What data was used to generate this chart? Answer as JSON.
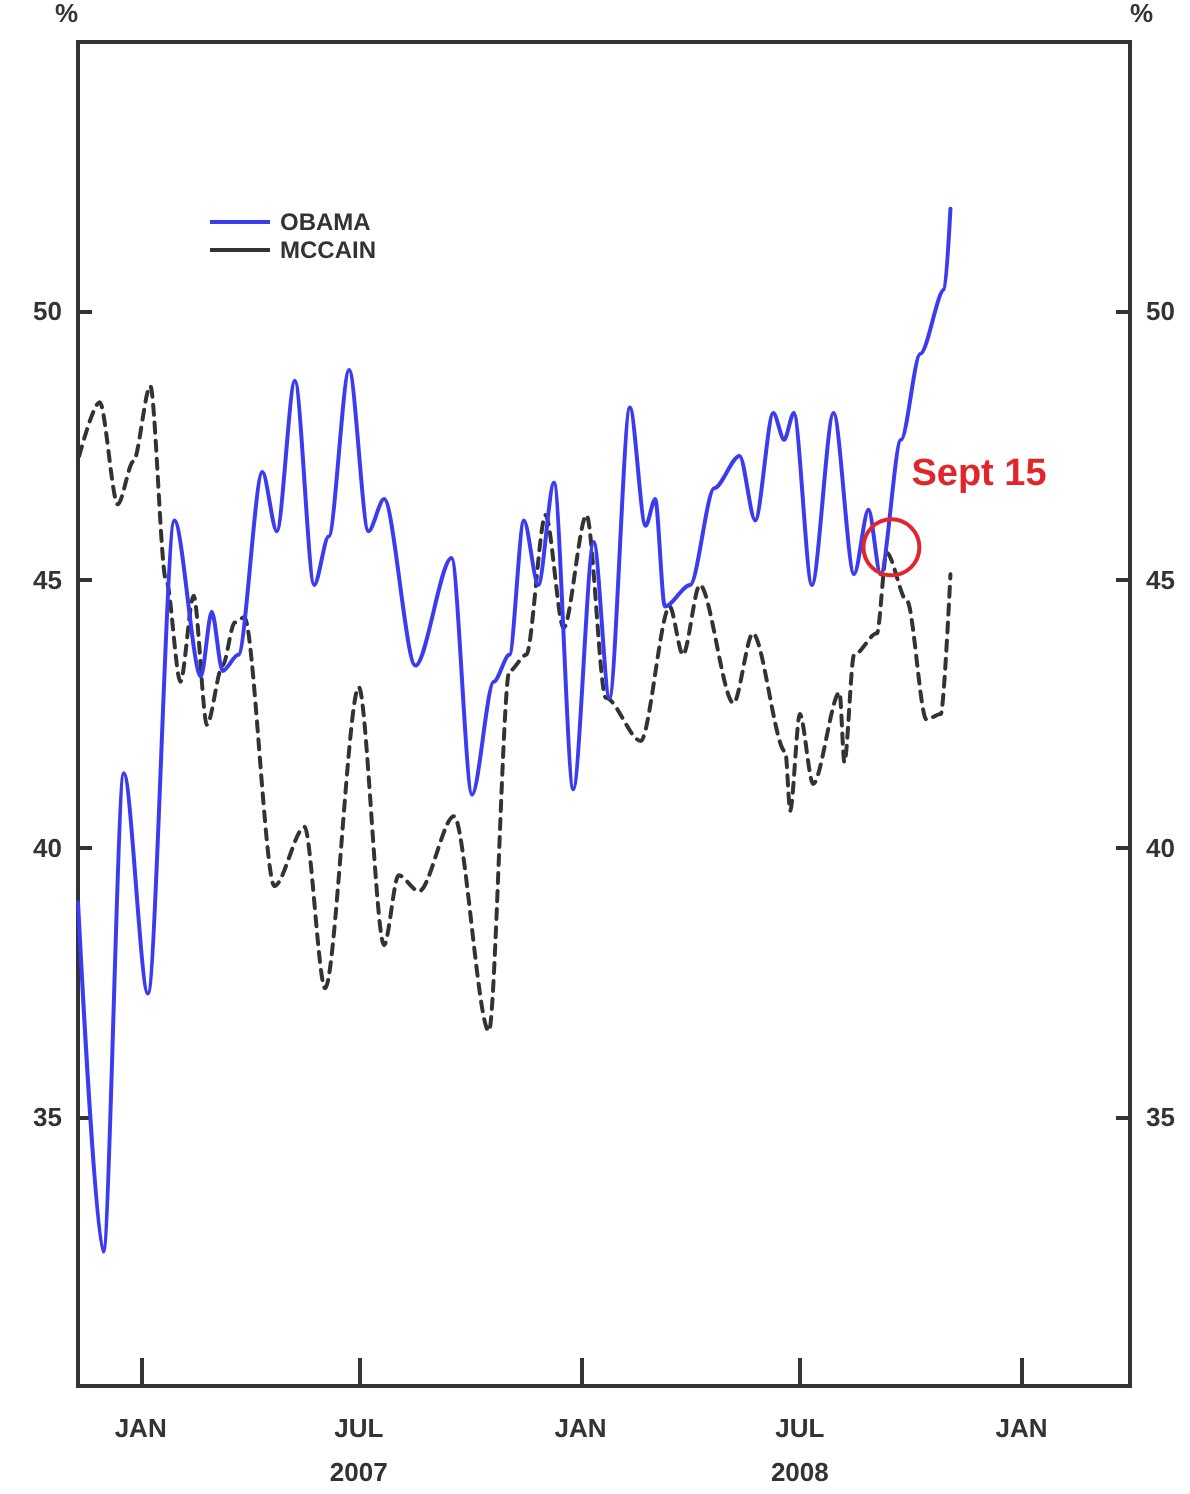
{
  "chart_data": {
    "type": "line",
    "ylabel": "%",
    "y2label": "%",
    "xlim": [
      "2006-11-10",
      "2009-04-01"
    ],
    "xticks": [
      {
        "value": "2007-01-01",
        "label": "JAN"
      },
      {
        "value": "2007-07-01",
        "label": "JUL\n2007"
      },
      {
        "value": "2008-01-01",
        "label": "JAN"
      },
      {
        "value": "2008-07-01",
        "label": "JUL\n2008"
      },
      {
        "value": "2009-01-01",
        "label": "JAN"
      }
    ],
    "ylim": [
      30,
      55
    ],
    "yticks": [
      35,
      40,
      45,
      50
    ],
    "y2lim": [
      30,
      55
    ],
    "y2ticks": [
      35,
      40,
      45,
      50
    ],
    "grid": false,
    "legend": "top left",
    "marker": "none",
    "annotations": [
      {
        "text": "Sept 15",
        "x": "2008-09-15",
        "y": 45.6
      }
    ],
    "series": [
      {
        "name": "OBAMA",
        "color": "#3b3bf0",
        "line_style": "solid",
        "x": [
          "2006-11-10",
          "2006-12-01",
          "2006-12-18",
          "2007-01-07",
          "2007-01-29",
          "2007-02-20",
          "2007-03-01",
          "2007-03-10",
          "2007-03-23",
          "2007-04-12",
          "2007-04-24",
          "2007-05-09",
          "2007-05-25",
          "2007-06-06",
          "2007-06-23",
          "2007-07-09",
          "2007-07-22",
          "2007-08-17",
          "2007-09-16",
          "2007-10-03",
          "2007-10-21",
          "2007-11-03",
          "2007-11-15",
          "2007-11-27",
          "2007-12-10",
          "2007-12-26",
          "2008-01-12",
          "2008-01-25",
          "2008-02-11",
          "2008-02-24",
          "2008-03-03",
          "2008-03-11",
          "2008-04-01",
          "2008-04-21",
          "2008-05-12",
          "2008-05-25",
          "2008-06-09",
          "2008-06-18",
          "2008-06-26",
          "2008-07-11",
          "2008-07-29",
          "2008-08-15",
          "2008-08-27",
          "2008-09-06",
          "2008-09-23",
          "2008-10-09",
          "2008-10-29",
          "2008-11-03"
        ],
        "values": [
          39.0,
          32.5,
          41.4,
          37.3,
          46.1,
          43.2,
          44.4,
          43.3,
          43.6,
          47.0,
          45.9,
          48.7,
          44.9,
          45.8,
          48.9,
          45.9,
          46.5,
          43.4,
          45.4,
          41.0,
          43.1,
          43.6,
          46.1,
          44.9,
          46.8,
          41.1,
          45.7,
          42.8,
          48.2,
          46.0,
          46.5,
          44.5,
          44.9,
          46.7,
          47.3,
          46.1,
          48.1,
          47.6,
          48.1,
          44.9,
          48.1,
          45.1,
          46.3,
          45.1,
          47.6,
          49.2,
          50.4,
          51.9
        ]
      },
      {
        "name": "MCCAIN",
        "color": "#333333",
        "line_style": "dashed",
        "x": [
          "2006-11-11",
          "2006-11-28",
          "2006-12-13",
          "2006-12-26",
          "2007-01-09",
          "2007-01-22",
          "2007-02-03",
          "2007-02-14",
          "2007-02-25",
          "2007-03-10",
          "2007-03-20",
          "2007-03-28",
          "2007-04-22",
          "2007-05-17",
          "2007-06-03",
          "2007-07-01",
          "2007-07-22",
          "2007-08-03",
          "2007-08-20",
          "2007-09-18",
          "2007-10-17",
          "2007-11-03",
          "2007-11-17",
          "2007-12-03",
          "2007-12-18",
          "2008-01-06",
          "2008-01-22",
          "2008-02-20",
          "2008-03-15",
          "2008-03-26",
          "2008-04-09",
          "2008-05-07",
          "2008-05-23",
          "2008-06-19",
          "2008-06-23",
          "2008-07-01",
          "2008-07-12",
          "2008-08-03",
          "2008-08-07",
          "2008-08-15",
          "2008-09-03",
          "2008-09-11",
          "2008-09-28",
          "2008-10-14",
          "2008-10-26",
          "2008-11-03"
        ],
        "values": [
          47.3,
          48.3,
          46.4,
          47.2,
          48.6,
          45.0,
          43.1,
          44.7,
          42.3,
          43.4,
          44.2,
          44.3,
          39.3,
          40.4,
          37.4,
          43.0,
          38.2,
          39.5,
          39.2,
          40.6,
          36.6,
          43.3,
          43.6,
          46.2,
          44.1,
          46.2,
          42.8,
          42.0,
          44.5,
          43.6,
          44.9,
          42.7,
          44.0,
          41.8,
          40.7,
          42.5,
          41.2,
          42.9,
          41.6,
          43.6,
          44.0,
          45.5,
          44.6,
          42.4,
          42.5,
          45.1
        ]
      }
    ]
  }
}
